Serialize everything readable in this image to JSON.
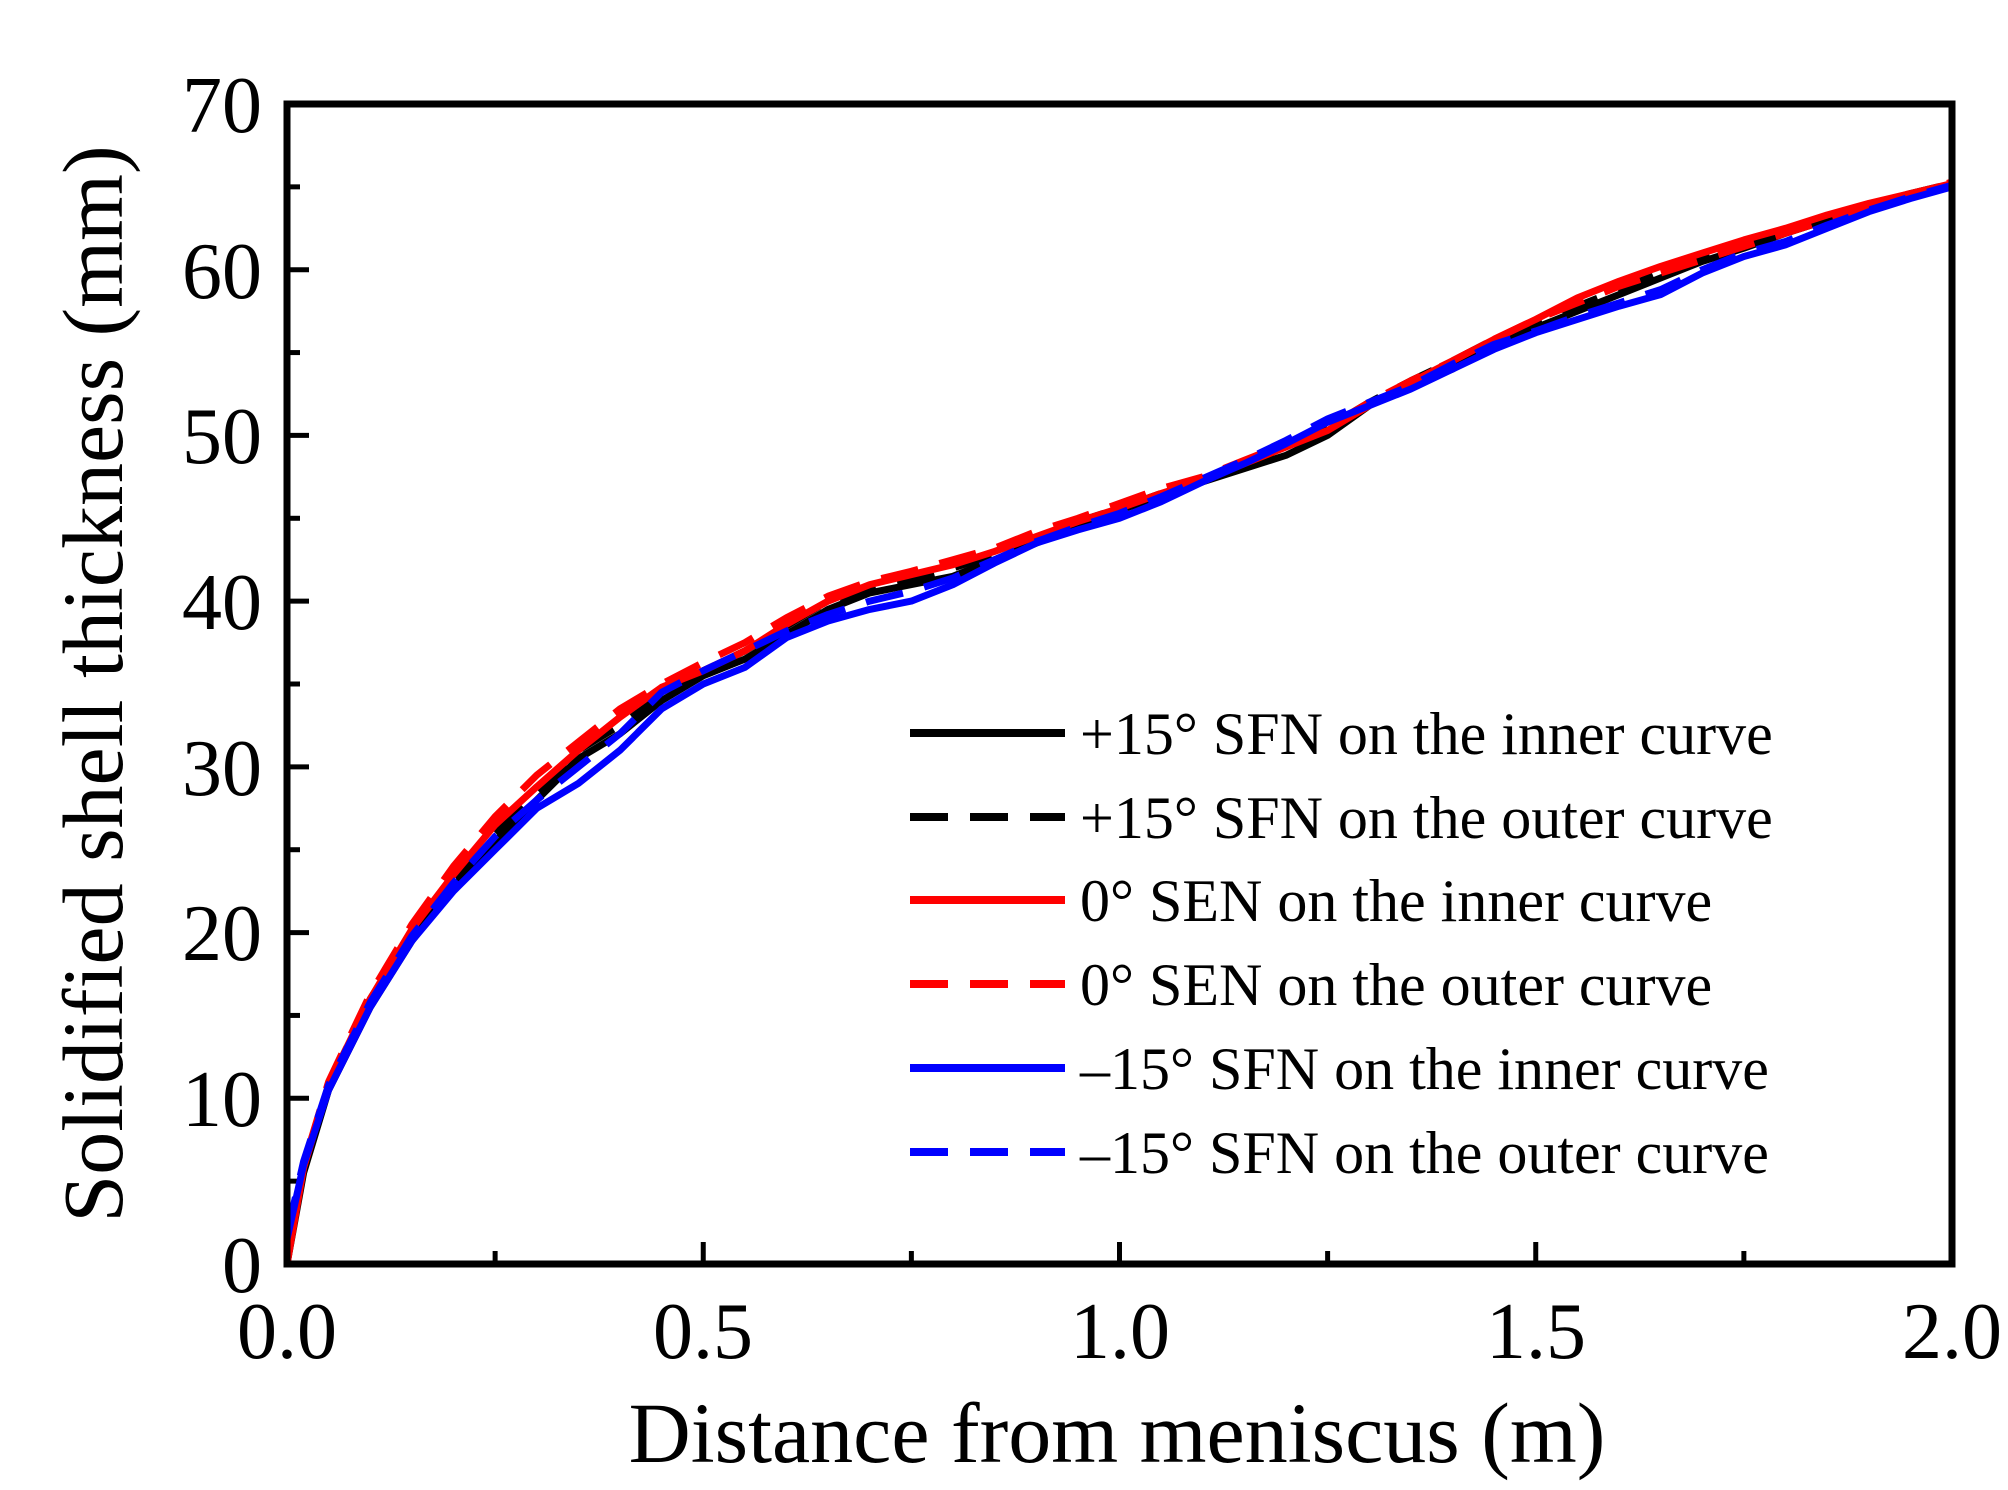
{
  "chart_data": {
    "type": "line",
    "title": "",
    "xlabel": "Distance from meniscus (m)",
    "ylabel": "Solidified shell thickness (mm)",
    "xlim": [
      0.0,
      2.0
    ],
    "ylim": [
      0,
      70
    ],
    "x_ticks": [
      0.0,
      0.5,
      1.0,
      1.5,
      2.0
    ],
    "x_tick_labels": [
      "0.0",
      "0.5",
      "1.0",
      "1.5",
      "2.0"
    ],
    "y_ticks": [
      0,
      10,
      20,
      30,
      40,
      50,
      60,
      70
    ],
    "y_tick_labels": [
      "0",
      "10",
      "20",
      "30",
      "40",
      "50",
      "60",
      "70"
    ],
    "grid": false,
    "legend_position": "bottom-right",
    "series": [
      {
        "name": "+15° SFN on the inner curve",
        "color": "#000000",
        "dash": "solid",
        "x": [
          0,
          0.02,
          0.05,
          0.1,
          0.15,
          0.2,
          0.25,
          0.3,
          0.35,
          0.4,
          0.45,
          0.5,
          0.55,
          0.6,
          0.65,
          0.7,
          0.75,
          0.8,
          0.85,
          0.9,
          0.95,
          1.0,
          1.05,
          1.1,
          1.15,
          1.2,
          1.25,
          1.3,
          1.35,
          1.4,
          1.45,
          1.5,
          1.55,
          1.6,
          1.65,
          1.7,
          1.75,
          1.8,
          1.85,
          1.9,
          1.95,
          2.0
        ],
        "y": [
          0,
          5.5,
          10.5,
          15.5,
          19.5,
          22.8,
          25.5,
          28.0,
          30.5,
          32.0,
          34.0,
          35.5,
          36.5,
          38.0,
          39.5,
          40.5,
          41.0,
          41.5,
          42.5,
          43.5,
          44.5,
          45.5,
          46.3,
          47.2,
          48.0,
          48.8,
          50.0,
          51.8,
          53.0,
          54.0,
          55.5,
          56.5,
          57.5,
          58.5,
          59.5,
          60.5,
          61.3,
          62.2,
          63.0,
          63.8,
          64.5,
          65.0
        ]
      },
      {
        "name": "+15° SFN on the outer curve",
        "color": "#000000",
        "dash": "dashed",
        "x": [
          0,
          0.02,
          0.05,
          0.1,
          0.15,
          0.2,
          0.25,
          0.3,
          0.35,
          0.4,
          0.45,
          0.5,
          0.55,
          0.6,
          0.65,
          0.7,
          0.75,
          0.8,
          0.85,
          0.9,
          0.95,
          1.0,
          1.05,
          1.1,
          1.15,
          1.2,
          1.25,
          1.3,
          1.35,
          1.4,
          1.45,
          1.5,
          1.55,
          1.6,
          1.65,
          1.7,
          1.75,
          1.8,
          1.85,
          1.9,
          1.95,
          2.0
        ],
        "y": [
          0.5,
          5.8,
          10.8,
          16.0,
          20.0,
          23.2,
          26.0,
          28.5,
          31.0,
          32.5,
          34.3,
          35.8,
          37.0,
          38.5,
          40.0,
          40.8,
          41.3,
          42.0,
          42.8,
          43.8,
          44.8,
          45.6,
          46.5,
          47.3,
          48.2,
          49.2,
          50.5,
          52.0,
          53.3,
          54.5,
          55.8,
          56.8,
          57.8,
          58.8,
          59.8,
          60.7,
          61.5,
          62.3,
          63.1,
          63.9,
          64.6,
          65.2
        ]
      },
      {
        "name": "0° SEN on the inner curve",
        "color": "#ff0000",
        "dash": "solid",
        "x": [
          0,
          0.02,
          0.05,
          0.1,
          0.15,
          0.2,
          0.25,
          0.3,
          0.35,
          0.4,
          0.45,
          0.5,
          0.55,
          0.6,
          0.65,
          0.7,
          0.75,
          0.8,
          0.85,
          0.9,
          0.95,
          1.0,
          1.05,
          1.1,
          1.15,
          1.2,
          1.25,
          1.3,
          1.35,
          1.4,
          1.45,
          1.5,
          1.55,
          1.6,
          1.65,
          1.7,
          1.75,
          1.8,
          1.85,
          1.9,
          1.95,
          2.0
        ],
        "y": [
          0,
          5.8,
          10.8,
          16.0,
          20.2,
          23.5,
          26.5,
          28.8,
          31.0,
          33.0,
          34.8,
          35.8,
          37.0,
          38.6,
          40.0,
          41.0,
          41.6,
          42.2,
          43.0,
          43.9,
          44.8,
          45.6,
          46.5,
          47.3,
          48.3,
          49.3,
          50.3,
          51.8,
          53.2,
          54.5,
          55.8,
          57.0,
          58.3,
          59.3,
          60.2,
          61.0,
          61.8,
          62.5,
          63.3,
          64.0,
          64.6,
          65.2
        ]
      },
      {
        "name": "0° SEN on the outer curve",
        "color": "#ff0000",
        "dash": "dashed",
        "x": [
          0,
          0.02,
          0.05,
          0.1,
          0.15,
          0.2,
          0.25,
          0.3,
          0.35,
          0.4,
          0.45,
          0.5,
          0.55,
          0.6,
          0.65,
          0.7,
          0.75,
          0.8,
          0.85,
          0.9,
          0.95,
          1.0,
          1.05,
          1.1,
          1.15,
          1.2,
          1.25,
          1.3,
          1.35,
          1.4,
          1.45,
          1.5,
          1.55,
          1.6,
          1.65,
          1.7,
          1.75,
          1.8,
          1.85,
          1.9,
          1.95,
          2.0
        ],
        "y": [
          0,
          6.0,
          11.0,
          16.3,
          20.5,
          24.0,
          27.0,
          29.5,
          31.5,
          33.5,
          35.0,
          36.3,
          37.5,
          39.0,
          40.3,
          41.2,
          41.8,
          42.5,
          43.2,
          44.2,
          45.0,
          45.9,
          46.8,
          47.5,
          48.5,
          49.5,
          50.5,
          52.0,
          53.3,
          54.5,
          55.8,
          57.0,
          58.0,
          59.0,
          59.8,
          60.6,
          61.4,
          62.2,
          63.0,
          63.8,
          64.5,
          65.3
        ]
      },
      {
        "name": "–15° SFN on the inner curve",
        "color": "#0000ff",
        "dash": "solid",
        "x": [
          0,
          0.02,
          0.05,
          0.1,
          0.15,
          0.2,
          0.25,
          0.3,
          0.35,
          0.4,
          0.45,
          0.5,
          0.55,
          0.6,
          0.65,
          0.7,
          0.75,
          0.8,
          0.85,
          0.9,
          0.95,
          1.0,
          1.05,
          1.1,
          1.15,
          1.2,
          1.25,
          1.3,
          1.35,
          1.4,
          1.45,
          1.5,
          1.55,
          1.6,
          1.65,
          1.7,
          1.75,
          1.8,
          1.85,
          1.9,
          1.95,
          2.0
        ],
        "y": [
          1.5,
          6.0,
          10.5,
          15.5,
          19.5,
          22.5,
          25.0,
          27.5,
          29.0,
          31.0,
          33.5,
          35.0,
          36.0,
          37.8,
          38.8,
          39.5,
          40.0,
          41.0,
          42.3,
          43.5,
          44.3,
          45.0,
          46.0,
          47.2,
          48.3,
          49.5,
          50.8,
          51.8,
          52.8,
          54.0,
          55.2,
          56.2,
          57.0,
          57.8,
          58.5,
          59.8,
          60.8,
          61.5,
          62.5,
          63.5,
          64.3,
          65.0
        ]
      },
      {
        "name": "–15° SFN on the outer curve",
        "color": "#0000ff",
        "dash": "dashed",
        "x": [
          0,
          0.02,
          0.05,
          0.1,
          0.15,
          0.2,
          0.25,
          0.3,
          0.35,
          0.4,
          0.45,
          0.5,
          0.55,
          0.6,
          0.65,
          0.7,
          0.75,
          0.8,
          0.85,
          0.9,
          0.95,
          1.0,
          1.05,
          1.1,
          1.15,
          1.2,
          1.25,
          1.3,
          1.35,
          1.4,
          1.45,
          1.5,
          1.55,
          1.6,
          1.65,
          1.7,
          1.75,
          1.8,
          1.85,
          1.9,
          1.95,
          2.0
        ],
        "y": [
          1.8,
          6.2,
          10.8,
          15.8,
          19.8,
          23.0,
          25.8,
          28.0,
          30.0,
          32.0,
          34.5,
          35.8,
          37.0,
          38.2,
          39.2,
          40.0,
          40.6,
          41.4,
          42.5,
          43.6,
          44.5,
          45.3,
          46.3,
          47.4,
          48.5,
          49.7,
          51.0,
          52.0,
          53.0,
          54.3,
          55.5,
          56.3,
          57.2,
          58.0,
          58.8,
          60.0,
          61.0,
          61.7,
          62.7,
          63.6,
          64.4,
          65.1
        ]
      }
    ]
  }
}
